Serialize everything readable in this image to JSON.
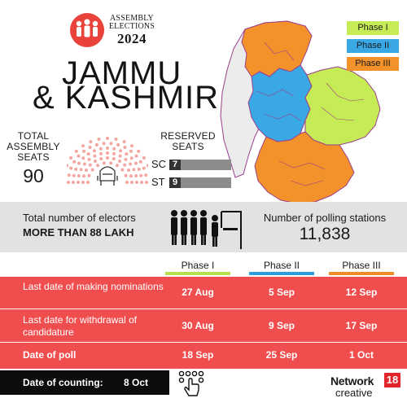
{
  "logo": {
    "line1": "ASSEMBLY",
    "line2": "ELECTIONS",
    "year": "2024",
    "icon": "voters-group-icon"
  },
  "title": {
    "line1": "JAMMU",
    "line2": "& KASHMIR"
  },
  "legend": [
    {
      "label": "Phase I",
      "color": "#c6ec55"
    },
    {
      "label": "Phase II",
      "color": "#3aa8e4"
    },
    {
      "label": "Phase III",
      "color": "#f3922b"
    }
  ],
  "total_seats": {
    "label": "TOTAL ASSEMBLY SEATS",
    "value": "90",
    "seat_color": "#f4a6a1"
  },
  "reserved": {
    "label": "RESERVED SEATS",
    "rows": [
      {
        "category": "SC",
        "value": "7"
      },
      {
        "category": "ST",
        "value": "9"
      }
    ]
  },
  "electors": {
    "label": "Total number of electors",
    "value": "MORE THAN 88 LAKH"
  },
  "polling_stations": {
    "label": "Number of polling stations",
    "value": "11,838"
  },
  "schedule": {
    "phases": [
      "Phase I",
      "Phase II",
      "Phase III"
    ],
    "rows": [
      {
        "label": "Last date of making nominations",
        "values": [
          "27 Aug",
          "5 Sep",
          "12 Sep"
        ]
      },
      {
        "label": "Last date for withdrawal of candidature",
        "values": [
          "30 Aug",
          "9 Sep",
          "17 Sep"
        ]
      },
      {
        "label": "Date of poll",
        "values": [
          "18 Sep",
          "25 Sep",
          "1 Oct"
        ]
      }
    ]
  },
  "counting": {
    "label": "Date of counting:",
    "value": "8 Oct",
    "icon": "hand-pressing-button-icon"
  },
  "brand": {
    "name": "Network",
    "number": "18",
    "sub": "creative"
  },
  "colors": {
    "accent_red": "#f04e4e",
    "band_gray": "#e2e2e2",
    "phase1": "#c6ec55",
    "phase2": "#3aa8e4",
    "phase3": "#f3922b"
  }
}
